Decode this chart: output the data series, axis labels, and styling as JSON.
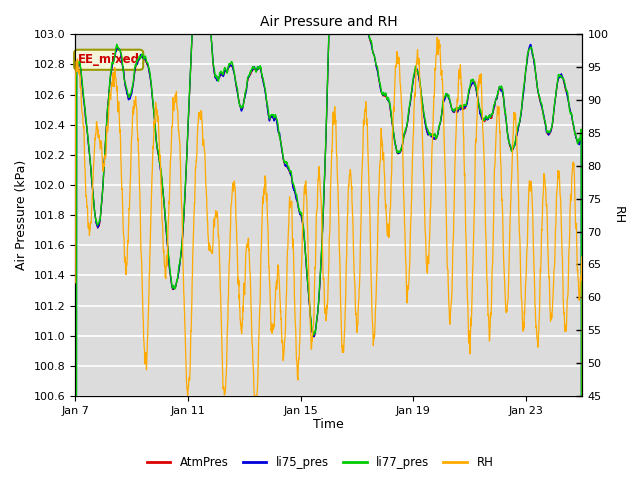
{
  "title": "Air Pressure and RH",
  "xlabel": "Time",
  "ylabel_left": "Air Pressure (kPa)",
  "ylabel_right": "RH",
  "ylim_left": [
    100.6,
    103.0
  ],
  "ylim_right": [
    45,
    100
  ],
  "yticks_left": [
    100.6,
    100.8,
    101.0,
    101.2,
    101.4,
    101.6,
    101.8,
    102.0,
    102.2,
    102.4,
    102.6,
    102.8,
    103.0
  ],
  "yticks_right": [
    45,
    50,
    55,
    60,
    65,
    70,
    75,
    80,
    85,
    90,
    95,
    100
  ],
  "xtick_labels": [
    "Jan 7",
    "Jan 11",
    "Jan 15",
    "Jan 19",
    "Jan 23"
  ],
  "xtick_positions": [
    0,
    4,
    8,
    12,
    16
  ],
  "annotation_text": "EE_mixed",
  "annotation_color": "#cc0000",
  "annotation_bg": "#F5F5DC",
  "annotation_border": "#999900",
  "bg_color_outer": "#ffffff",
  "bg_color_inner": "#dcdcdc",
  "bg_band1": "#c8c8c8",
  "line_colors": {
    "AtmPres": "#dd0000",
    "li75_pres": "#0000dd",
    "li77_pres": "#00cc00",
    "RH": "#ffaa00"
  },
  "grid_color": "#ffffff",
  "seed": 123
}
